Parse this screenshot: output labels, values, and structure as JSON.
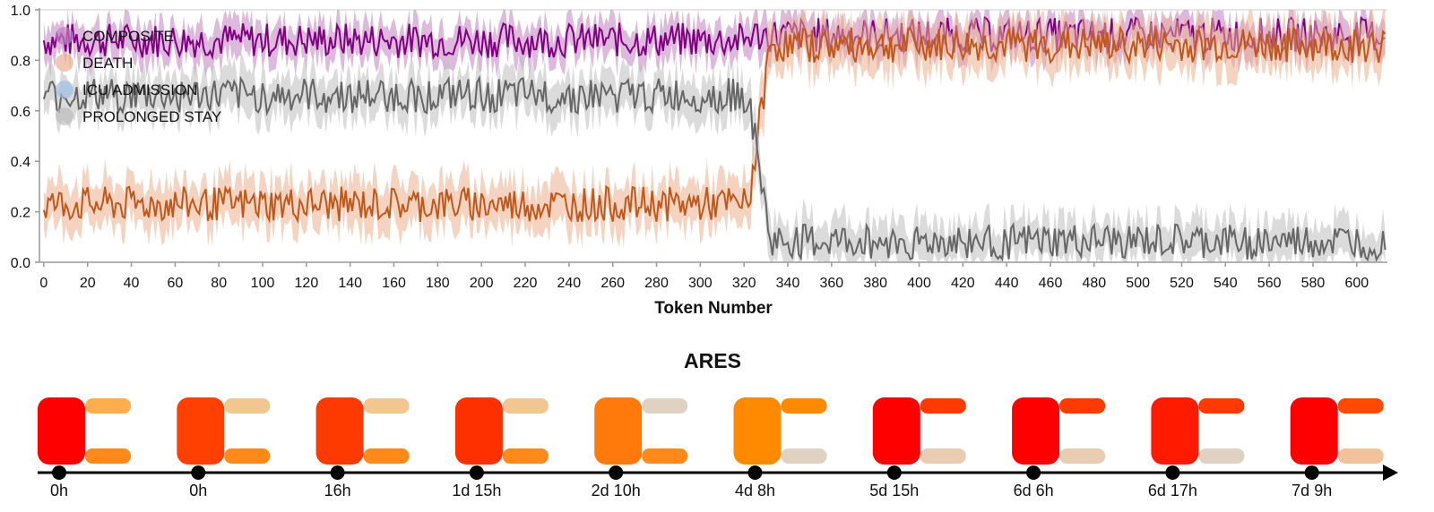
{
  "chart_data": [
    {
      "type": "line",
      "xlabel": "Token Number",
      "ylabel": "",
      "xlim": [
        -2,
        614
      ],
      "ylim": [
        0.0,
        1.0
      ],
      "xticks": [
        0,
        20,
        40,
        60,
        80,
        100,
        120,
        140,
        160,
        180,
        200,
        220,
        240,
        260,
        280,
        300,
        320,
        340,
        360,
        380,
        400,
        420,
        440,
        460,
        480,
        500,
        520,
        540,
        560,
        580,
        600
      ],
      "yticks": [
        "0.0",
        "0.2",
        "0.4",
        "0.6",
        "0.8",
        "1.0"
      ],
      "grid": false,
      "legend_position": "top-left",
      "series": [
        {
          "name": "COMPOSITE",
          "color": "#800080",
          "band_color": "#c17fc1",
          "mean_before": 0.88,
          "mean_after": 0.9,
          "noise": 0.07,
          "band": 0.07,
          "transition": 0.0
        },
        {
          "name": "DEATH",
          "color": "#c0581d",
          "band_color": "#ebb08e",
          "mean_before": 0.23,
          "mean_after": 0.86,
          "noise": 0.07,
          "band": 0.09,
          "transition": 1.0
        },
        {
          "name": "ICU ADMISSION",
          "color": "#4a7dbf",
          "band_color": "#9fbde6",
          "mean_before": null,
          "mean_after": null,
          "noise": 0,
          "band": 0,
          "transition": 0.0
        },
        {
          "name": "PROLONGED STAY",
          "color": "#666666",
          "band_color": "#bdbdbd",
          "mean_before": 0.66,
          "mean_after": 0.08,
          "noise": 0.07,
          "band": 0.08,
          "transition": 1.0
        }
      ],
      "transition_token": 322,
      "n_tokens": 614
    },
    {
      "type": "timeline",
      "title": "ARES",
      "events": [
        {
          "time": "0h",
          "main": "#ff0000",
          "top": "#ffad4f",
          "bottom": "#ff8a1a"
        },
        {
          "time": "0h",
          "main": "#ff4000",
          "top": "#f2c690",
          "bottom": "#ff8a1a"
        },
        {
          "time": "16h",
          "main": "#ff3a00",
          "top": "#f2c690",
          "bottom": "#ff8a1a"
        },
        {
          "time": "1d 15h",
          "main": "#ff3000",
          "top": "#f2c690",
          "bottom": "#ff8a1a"
        },
        {
          "time": "2d 10h",
          "main": "#ff7a0a",
          "top": "#e0d2c3",
          "bottom": "#ff8a1a"
        },
        {
          "time": "4d 8h",
          "main": "#ff8a00",
          "top": "#ff8a00",
          "bottom": "#e0d2c3"
        },
        {
          "time": "5d 15h",
          "main": "#ff0000",
          "top": "#ff3a00",
          "bottom": "#e8cdb2"
        },
        {
          "time": "6d 6h",
          "main": "#ff0000",
          "top": "#ff3a00",
          "bottom": "#e8cdb2"
        },
        {
          "time": "6d 17h",
          "main": "#ff1a00",
          "top": "#ff3a00",
          "bottom": "#e0d2c3"
        },
        {
          "time": "7d 9h",
          "main": "#ff0000",
          "top": "#ff4a00",
          "bottom": "#f2c29a"
        }
      ]
    }
  ]
}
